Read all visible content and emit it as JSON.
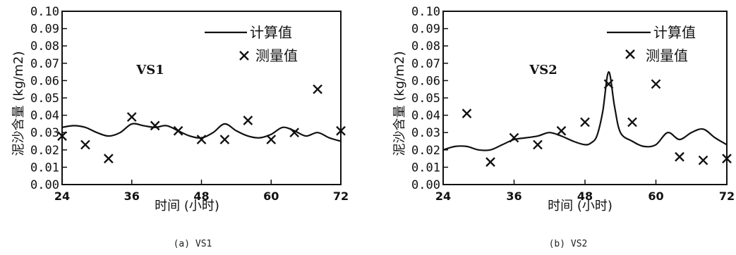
{
  "chart_data": [
    {
      "type": "line",
      "title": "VS1",
      "caption": "(a) VS1",
      "xlabel": "时间  (小时)",
      "ylabel": "泥沙含量 (kg/m2)",
      "xlim": [
        24,
        72
      ],
      "ylim": [
        0,
        0.1
      ],
      "xticks": [
        24,
        36,
        48,
        60,
        72
      ],
      "yticks": [
        "0.00",
        "0.01",
        "0.02",
        "0.03",
        "0.04",
        "0.05",
        "0.06",
        "0.07",
        "0.08",
        "0.09",
        "0.10"
      ],
      "legend": "top-right",
      "series": [
        {
          "name": "计算值",
          "style": "line",
          "x": [
            24,
            26,
            28,
            30,
            32,
            34,
            36,
            38,
            40,
            42,
            44,
            46,
            48,
            50,
            52,
            54,
            56,
            58,
            60,
            62,
            64,
            66,
            68,
            70,
            72
          ],
          "y": [
            0.033,
            0.034,
            0.033,
            0.03,
            0.028,
            0.03,
            0.035,
            0.034,
            0.033,
            0.034,
            0.031,
            0.028,
            0.027,
            0.03,
            0.035,
            0.031,
            0.028,
            0.027,
            0.029,
            0.033,
            0.031,
            0.028,
            0.03,
            0.027,
            0.025
          ]
        },
        {
          "name": "测量值",
          "style": "marker",
          "x": [
            24,
            28,
            32,
            36,
            40,
            44,
            48,
            52,
            56,
            60,
            64,
            68,
            72
          ],
          "y": [
            0.028,
            0.023,
            0.015,
            0.039,
            0.034,
            0.031,
            0.026,
            0.026,
            0.037,
            0.026,
            0.03,
            0.055,
            0.031
          ]
        }
      ]
    },
    {
      "type": "line",
      "title": "VS2",
      "caption": "(b) VS2",
      "xlabel": "时间  (小时)",
      "ylabel": "泥沙含量 (kg/m2)",
      "xlim": [
        24,
        72
      ],
      "ylim": [
        0,
        0.1
      ],
      "xticks": [
        24,
        36,
        48,
        60,
        72
      ],
      "yticks": [
        "0.00",
        "0.01",
        "0.02",
        "0.03",
        "0.04",
        "0.05",
        "0.06",
        "0.07",
        "0.08",
        "0.09",
        "0.10"
      ],
      "legend": "top-right",
      "series": [
        {
          "name": "计算值",
          "style": "line",
          "x": [
            24,
            26,
            28,
            30,
            32,
            34,
            36,
            38,
            40,
            42,
            44,
            46,
            48,
            49,
            50,
            51,
            52,
            53,
            54,
            56,
            58,
            60,
            62,
            64,
            66,
            68,
            70,
            72
          ],
          "y": [
            0.02,
            0.022,
            0.022,
            0.02,
            0.02,
            0.023,
            0.026,
            0.027,
            0.028,
            0.03,
            0.028,
            0.025,
            0.023,
            0.024,
            0.028,
            0.042,
            0.065,
            0.045,
            0.03,
            0.025,
            0.022,
            0.023,
            0.03,
            0.026,
            0.03,
            0.032,
            0.027,
            0.023
          ]
        },
        {
          "name": "测量值",
          "style": "marker",
          "x": [
            28,
            32,
            36,
            40,
            44,
            48,
            52,
            56,
            60,
            64,
            68,
            72
          ],
          "y": [
            0.041,
            0.013,
            0.027,
            0.023,
            0.031,
            0.036,
            0.058,
            0.036,
            0.058,
            0.016,
            0.014,
            0.015
          ]
        }
      ]
    }
  ]
}
